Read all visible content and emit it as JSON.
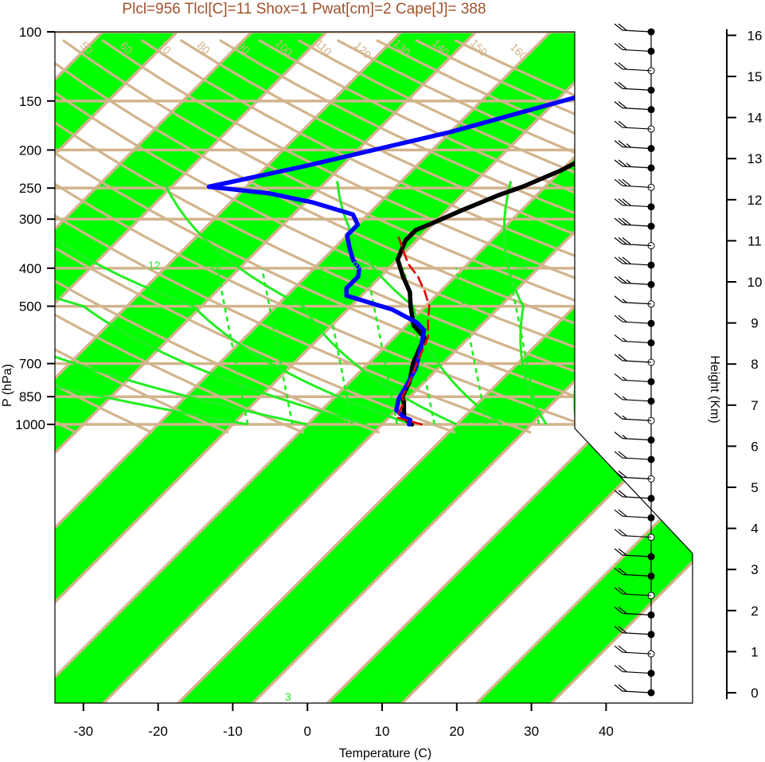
{
  "title": "Plcl=956 Tlcl[C]=11 Shox=1 Pwat[cm]=2 Cape[J]= 388",
  "colors": {
    "title": "#a0522d",
    "band": "#00ff00",
    "isotherm": "#d2b48c",
    "temperature": "#000000",
    "dewpoint": "#0000ff",
    "parcel": "#dd0000",
    "mixing_ratio": "#22ee22"
  },
  "chart_data": {
    "type": "line",
    "title": "Plcl=956 Tlcl[C]=11 Shox=1 Pwat[cm]=2 Cape[J]= 388",
    "xlabel": "Temperature (C)",
    "ylabel": "P (hPa)",
    "y2label": "Height (Km)",
    "x_ticks": [
      -30,
      -20,
      -10,
      0,
      10,
      20,
      30,
      40
    ],
    "x_tick_labels": [
      "-30",
      "-20",
      "-10",
      "0",
      "10",
      "20",
      "30",
      "40"
    ],
    "y_ticks": [
      100,
      150,
      200,
      250,
      300,
      400,
      500,
      700,
      850,
      1000
    ],
    "y_tick_labels": [
      "100",
      "150",
      "200",
      "250",
      "300",
      "400",
      "500",
      "700",
      "850",
      "1000"
    ],
    "height_ticks": [
      0,
      1,
      2,
      3,
      4,
      5,
      6,
      7,
      8,
      9,
      10,
      11,
      12,
      13,
      14,
      15,
      16
    ],
    "height_tick_labels": [
      "0",
      "1",
      "2",
      "3",
      "4",
      "5",
      "6",
      "7",
      "8",
      "9",
      "10",
      "11",
      "12",
      "13",
      "14",
      "15",
      "16"
    ],
    "pressure_scale": "log",
    "isotherm_labels": [
      "30",
      "20",
      "10",
      "0",
      "10",
      "20",
      "30"
    ],
    "isotherm_values": [
      -30,
      -20,
      -10,
      0,
      10,
      20,
      30
    ],
    "dry_adiabat_labels": [
      "50",
      "60",
      "70",
      "80",
      "90",
      "100",
      "110",
      "120",
      "130",
      "140",
      "150",
      "160"
    ],
    "mixing_ratio_labels": [
      "12",
      "16",
      "24",
      "32",
      "3",
      "8"
    ],
    "series": [
      {
        "key": "temperature",
        "points": [
          [
            14,
            1000
          ],
          [
            13,
            980
          ],
          [
            12,
            960
          ],
          [
            10,
            880
          ],
          [
            9,
            850
          ],
          [
            8,
            780
          ],
          [
            6,
            700
          ],
          [
            4,
            600
          ],
          [
            1,
            560
          ],
          [
            -2,
            500
          ],
          [
            -4,
            460
          ],
          [
            -7,
            420
          ],
          [
            -10,
            380
          ],
          [
            -11.5,
            340
          ],
          [
            -11.5,
            320
          ],
          [
            -10,
            305
          ],
          [
            -8,
            285
          ],
          [
            -5,
            260
          ],
          [
            -3,
            248
          ],
          [
            0,
            225
          ],
          [
            3,
            195
          ],
          [
            6,
            160
          ],
          [
            9,
            130
          ],
          [
            12,
            112
          ],
          [
            15,
            102
          ]
        ]
      },
      {
        "key": "dewpoint",
        "points": [
          [
            13.6,
            1000
          ],
          [
            13.2,
            975
          ],
          [
            12,
            960
          ],
          [
            10,
            920
          ],
          [
            9,
            870
          ],
          [
            8.8,
            860
          ],
          [
            8,
            790
          ],
          [
            7,
            720
          ],
          [
            5,
            640
          ],
          [
            3,
            575
          ],
          [
            1,
            550
          ],
          [
            -4,
            510
          ],
          [
            -12,
            470
          ],
          [
            -13,
            450
          ],
          [
            -13,
            420
          ],
          [
            -14,
            400
          ],
          [
            -16,
            380
          ],
          [
            -18,
            355
          ],
          [
            -20,
            330
          ],
          [
            -20,
            310
          ],
          [
            -22,
            292
          ],
          [
            -29,
            272
          ],
          [
            -36,
            258
          ],
          [
            -45,
            248
          ],
          [
            -35,
            220
          ],
          [
            -20,
            180
          ],
          [
            -5,
            140
          ],
          [
            10,
            104
          ]
        ]
      },
      {
        "key": "parcel",
        "points": [
          [
            15.3,
            1000
          ],
          [
            11,
            960
          ],
          [
            10,
            880
          ],
          [
            9,
            850
          ],
          [
            8,
            780
          ],
          [
            6.5,
            700
          ],
          [
            4.5,
            600
          ],
          [
            2.5,
            550
          ],
          [
            0.5,
            500
          ],
          [
            -2,
            460
          ],
          [
            -5,
            420
          ],
          [
            -8,
            390
          ],
          [
            -10.5,
            360
          ],
          [
            -12.8,
            334
          ]
        ]
      }
    ],
    "wind_barbs": {
      "speed_kt": [
        20,
        20,
        20,
        20,
        20,
        20,
        20,
        20,
        20,
        20,
        20,
        20,
        20,
        15,
        15,
        15,
        15,
        20,
        15,
        20,
        15,
        25,
        30,
        30,
        30,
        30,
        30,
        25,
        25,
        20,
        20,
        20,
        20,
        20,
        20
      ]
    }
  }
}
